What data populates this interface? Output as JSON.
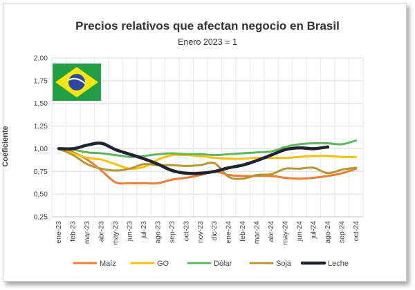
{
  "chart_data": {
    "type": "line",
    "title": "Precios relativos que afectan negocio en Brasil",
    "subtitle": "Enero 2023 = 1",
    "ylabel": "Coeficiente",
    "xlabel": "",
    "ylim": [
      0.25,
      2.0
    ],
    "yticks": [
      "0,25",
      "0,50",
      "0,75",
      "1,00",
      "1,25",
      "1,50",
      "1,75",
      "2,00"
    ],
    "categories": [
      "ene-23",
      "feb-23",
      "mar-23",
      "abr-23",
      "may-23",
      "jun-23",
      "jul-23",
      "ago-23",
      "sep-23",
      "oct-23",
      "nov-23",
      "dic-23",
      "ene-24",
      "feb-24",
      "mar-24",
      "abr-24",
      "may-24",
      "jun-24",
      "jul-24",
      "ago-24",
      "sep-24",
      "oct-24"
    ],
    "grid": true,
    "legend": "bottom",
    "series": [
      {
        "name": "Maíz",
        "color": "#ed7d31",
        "values": [
          1.0,
          0.96,
          0.88,
          0.76,
          0.63,
          0.62,
          0.62,
          0.62,
          0.66,
          0.68,
          0.71,
          0.75,
          0.71,
          0.7,
          0.7,
          0.7,
          0.68,
          0.67,
          0.68,
          0.7,
          0.73,
          0.78
        ]
      },
      {
        "name": "GO",
        "color": "#ffc000",
        "values": [
          1.0,
          0.95,
          0.9,
          0.88,
          0.83,
          0.78,
          0.8,
          0.88,
          0.93,
          0.93,
          0.92,
          0.9,
          0.89,
          0.89,
          0.9,
          0.9,
          0.9,
          0.91,
          0.92,
          0.92,
          0.91,
          0.91
        ]
      },
      {
        "name": "Dólar",
        "color": "#5cb85c",
        "values": [
          1.0,
          0.99,
          0.96,
          0.95,
          0.93,
          0.91,
          0.92,
          0.94,
          0.95,
          0.94,
          0.94,
          0.93,
          0.94,
          0.95,
          0.96,
          0.97,
          1.02,
          1.05,
          1.06,
          1.06,
          1.05,
          1.09
        ]
      },
      {
        "name": "Soja",
        "color": "#b8962e",
        "values": [
          1.0,
          0.93,
          0.83,
          0.78,
          0.76,
          0.78,
          0.83,
          0.82,
          0.82,
          0.81,
          0.82,
          0.84,
          0.69,
          0.67,
          0.71,
          0.72,
          0.78,
          0.78,
          0.79,
          0.73,
          0.77,
          0.79
        ]
      },
      {
        "name": "Leche",
        "color": "#1f2430",
        "values": [
          1.0,
          1.0,
          1.04,
          1.06,
          0.99,
          0.94,
          0.89,
          0.83,
          0.76,
          0.73,
          0.73,
          0.75,
          0.79,
          0.82,
          0.87,
          0.93,
          0.99,
          1.01,
          1.0,
          1.02,
          null,
          null
        ]
      }
    ]
  },
  "flag": {
    "name": "brazil-flag",
    "green": "#229e45",
    "yellow": "#f8e509",
    "blue": "#2b49a3"
  }
}
